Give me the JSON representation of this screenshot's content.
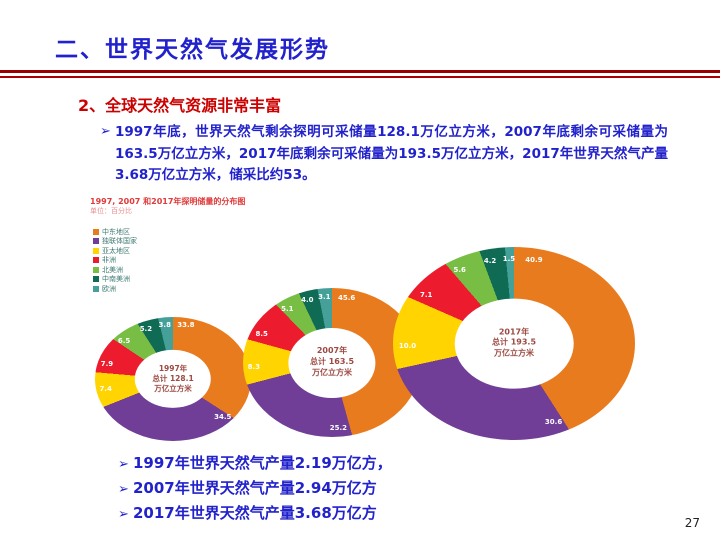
{
  "slide": {
    "title": "二、世界天然气发展形势",
    "heading": "2、全球天然气资源非常丰富",
    "marker": "➢",
    "paragraph": "1997年底，世界天然气剩余探明可采储量128.1万亿立方米，2007年底剩余可采储量为163.5万亿立方米，2017年底剩余可采储量为193.5万亿立方米，2017年世界天然气产量3.68万亿立方米，储采比约53。",
    "bullets": [
      {
        "text": "1997年世界天然气产量2.19万亿方，"
      },
      {
        "text": "2007年世界天然气产量2.94万亿方"
      },
      {
        "text": "2017年世界天然气产量3.68万亿方"
      }
    ],
    "page_number": "27",
    "colors": {
      "title_blue": "#2222CC",
      "heading_red": "#CC0000",
      "divider_red": "#990000"
    }
  },
  "chart_data": {
    "type": "pie",
    "subtype": "donut, three pies by year",
    "title": "1997, 2007 和2017年探明储量的分布图",
    "subtitle": "单位：百分比",
    "unit": "%",
    "legend_position": "top-left",
    "regions": [
      {
        "name": "中东地区",
        "color": "#E97B1F"
      },
      {
        "name": "独联体国家",
        "color": "#703E97"
      },
      {
        "name": "亚太地区",
        "color": "#FFD400"
      },
      {
        "name": "非洲",
        "color": "#EC1C2E"
      },
      {
        "name": "北美洲",
        "color": "#79BE44"
      },
      {
        "name": "中南美洲",
        "color": "#0F6B54"
      },
      {
        "name": "欧洲",
        "color": "#44A099"
      }
    ],
    "pies": [
      {
        "year": "1997年",
        "total_label": "总计 128.1",
        "unit_label": "万亿立方米",
        "values": [
          33.8,
          34.5,
          7.4,
          7.9,
          6.5,
          5.2,
          3.8
        ]
      },
      {
        "year": "2007年",
        "total_label": "总计 163.5",
        "unit_label": "万亿立方米",
        "values": [
          45.6,
          25.2,
          8.3,
          8.5,
          5.1,
          4.0,
          3.1
        ]
      },
      {
        "year": "2017年",
        "total_label": "总计 193.5",
        "unit_label": "万亿立方米",
        "values": [
          40.9,
          30.6,
          10.0,
          7.1,
          5.6,
          4.2,
          1.5
        ]
      }
    ]
  }
}
